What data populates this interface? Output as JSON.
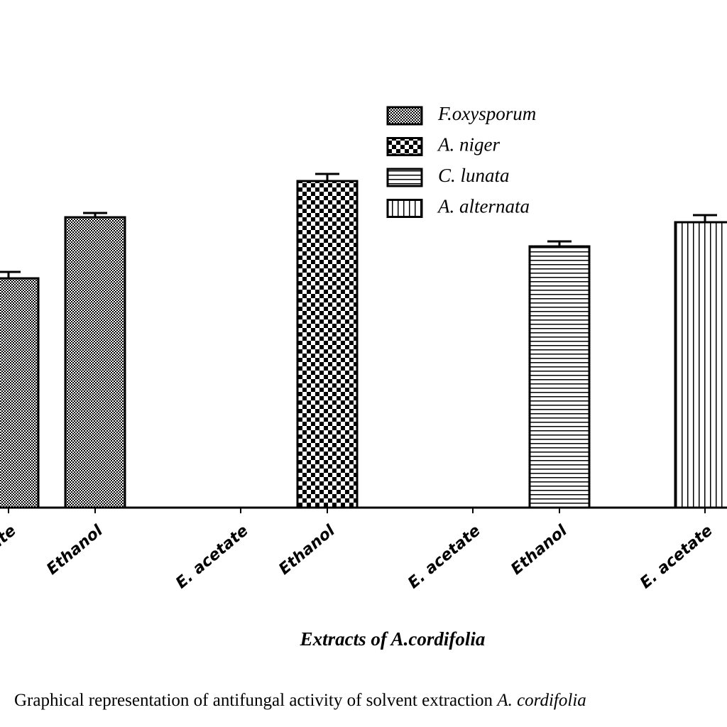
{
  "chart_data": {
    "type": "bar",
    "x_label": "Extracts of A.cordifolia",
    "caption": "Graphical representation of antifungal activity of solvent extraction",
    "caption_italic": "A. cordifolia",
    "categories": [
      "E. acetate",
      "Ethanol",
      "E. acetate",
      "Ethanol",
      "E. acetate",
      "Ethanol",
      "E. acetate"
    ],
    "ylim": [
      0,
      500
    ],
    "series": [
      {
        "name": "F.oxysporum",
        "color": "#000000",
        "pattern": "fine-check",
        "values": [
          323,
          409,
          null,
          null,
          null,
          null,
          null
        ],
        "errors": [
          9,
          6,
          null,
          null,
          null,
          null,
          null
        ]
      },
      {
        "name": "A. niger",
        "color": "#000000",
        "pattern": "check",
        "values": [
          null,
          null,
          0,
          460,
          null,
          null,
          null
        ],
        "errors": [
          null,
          null,
          null,
          10,
          null,
          null,
          null
        ]
      },
      {
        "name": "C. lunata",
        "color": "#000000",
        "pattern": "hlines",
        "values": [
          null,
          null,
          null,
          null,
          0,
          368,
          null
        ],
        "errors": [
          null,
          null,
          null,
          null,
          null,
          7,
          null
        ]
      },
      {
        "name": "A. alternata",
        "color": "#000000",
        "pattern": "vlines",
        "values": [
          null,
          null,
          null,
          null,
          null,
          null,
          402
        ],
        "errors": [
          null,
          null,
          null,
          null,
          null,
          null,
          10
        ]
      }
    ]
  }
}
